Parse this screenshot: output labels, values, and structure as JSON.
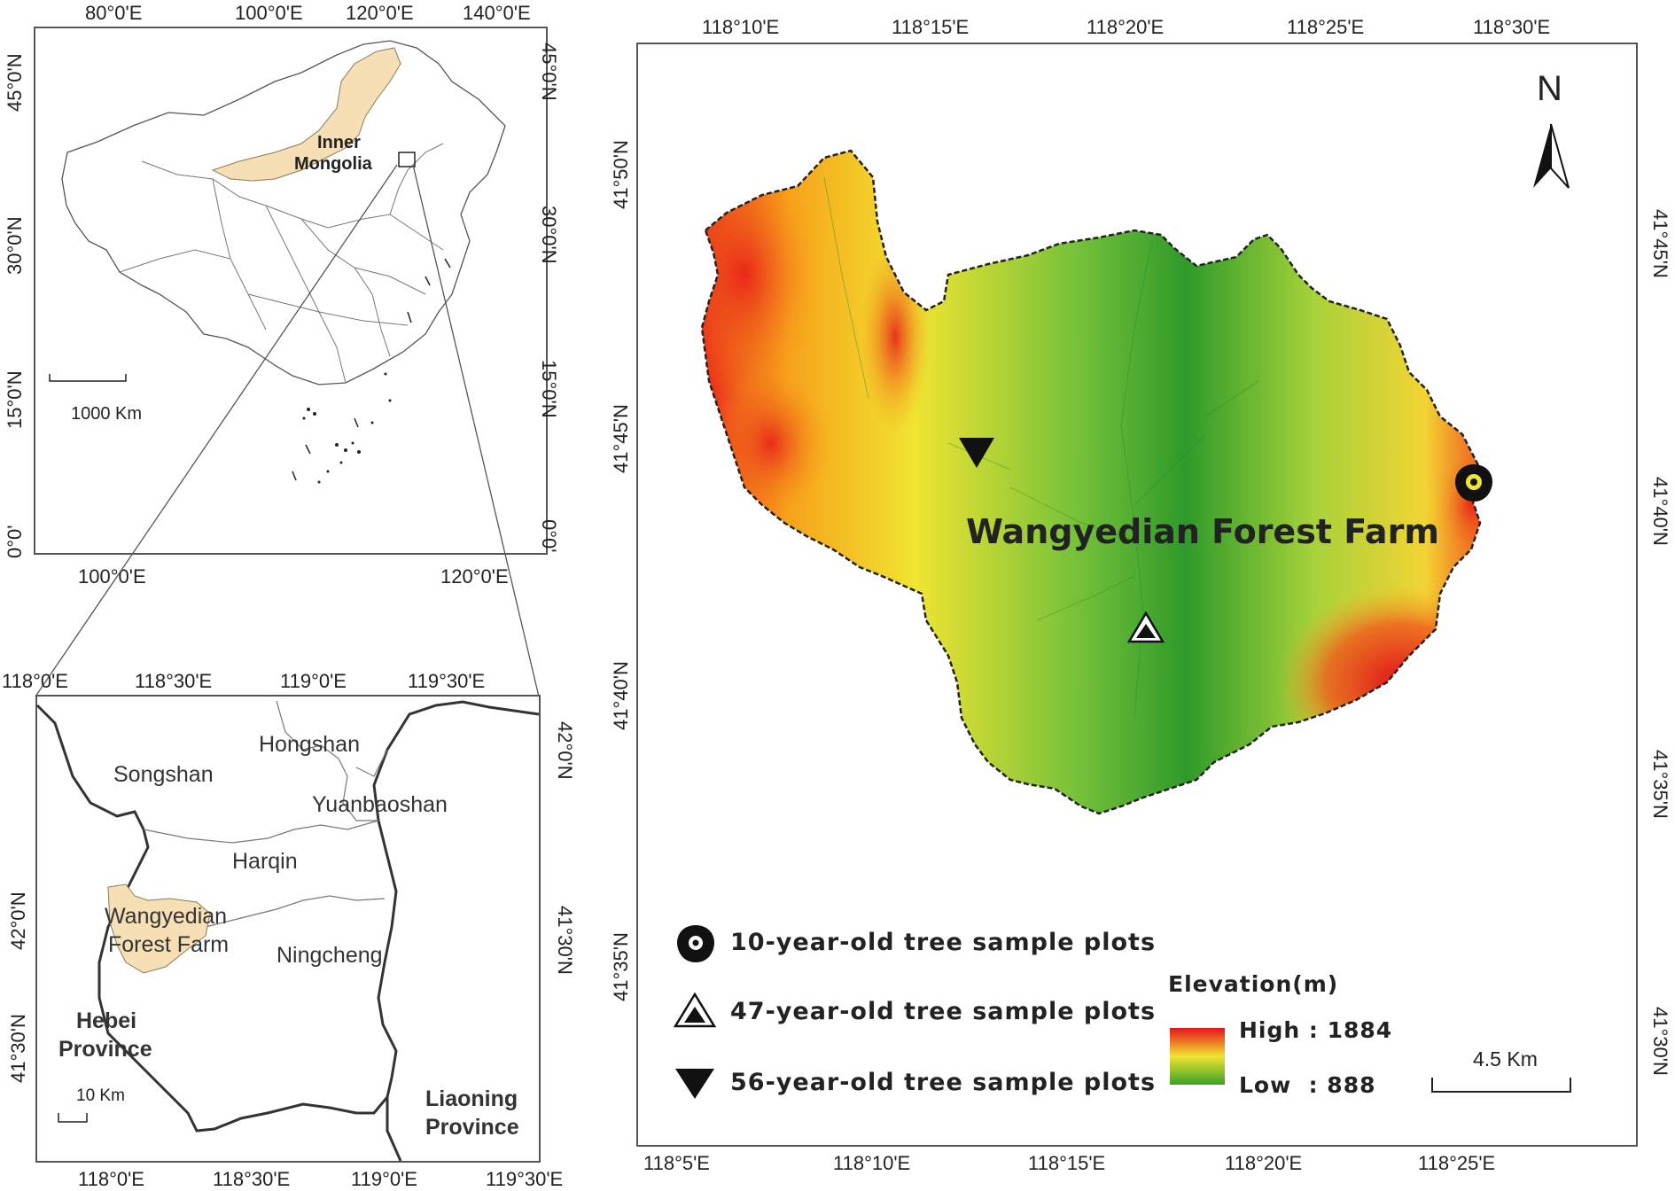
{
  "overview": {
    "top_ticks": [
      "80°0'E",
      "100°0'E",
      "120°0'E",
      "140°0'E"
    ],
    "bottom_ticks": [
      "100°0'E",
      "120°0'E"
    ],
    "left_ticks": [
      "45°0'N",
      "30°0'N",
      "15°0'N",
      "0°0'"
    ],
    "right_ticks": [
      "45°0'N",
      "30°0'N",
      "15°0'N",
      "0°0'"
    ],
    "region_label": "Inner Mongolia",
    "region_line1": "Inner",
    "region_line2": "Mongolia",
    "scale_label": "1000 Km",
    "highlight_color": "#f6dfb4"
  },
  "regional": {
    "top_ticks": [
      "118°0'E",
      "118°30'E",
      "119°0'E",
      "119°30'E"
    ],
    "bottom_ticks": [
      "118°0'E",
      "118°30'E",
      "119°0'E",
      "119°30'E"
    ],
    "left_ticks": [
      "42°0'N",
      "41°30'N"
    ],
    "right_ticks": [
      "42°0'N",
      "41°30'N"
    ],
    "places": [
      "Songshan",
      "Hongshan",
      "Yuanbaoshan",
      "Harqin",
      "Ningcheng"
    ],
    "farm_line1": "Wangyedian",
    "farm_line2": "Forest Farm",
    "hebei_line1": "Hebei",
    "hebei_line2": "Province",
    "liaoning_line1": "Liaoning",
    "liaoning_line2": "Province",
    "scale_label": "10 Km"
  },
  "main": {
    "top_ticks": [
      "118°10'E",
      "118°15'E",
      "118°20'E",
      "118°25'E",
      "118°30'E"
    ],
    "bottom_ticks": [
      "118°5'E",
      "118°10'E",
      "118°15'E",
      "118°20'E",
      "118°25'E"
    ],
    "left_ticks": [
      "41°50'N",
      "41°45'N",
      "41°40'N",
      "41°35'N"
    ],
    "right_ticks": [
      "41°45'N",
      "41°40'N",
      "41°35'N",
      "41°30'N"
    ],
    "title": "Wangyedian Forest Farm",
    "north_label": "N",
    "scale_label": "4.5 Km",
    "legend": {
      "markers": [
        {
          "icon": "map-pin-icon",
          "label": "10-year-old tree sample plots"
        },
        {
          "icon": "mountain-triangle-icon",
          "label": "47-year-old tree sample plots"
        },
        {
          "icon": "inverted-triangle-icon",
          "label": "56-year-old tree sample plots"
        }
      ],
      "elevation_title": "Elevation(m)",
      "high_label": "High : 1884",
      "low_label": "Low  : 888",
      "gradient_colors": [
        "#e8121a",
        "#f1e432",
        "#3aa127"
      ]
    }
  }
}
